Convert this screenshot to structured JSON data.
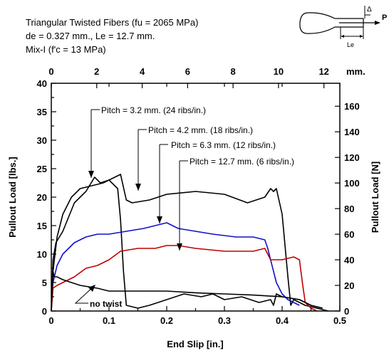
{
  "chart_data": {
    "type": "line",
    "info_lines": [
      "Triangular Twisted Fibers (fu = 2065 MPa)",
      "de = 0.327 mm., Le = 12.7 mm.",
      "Mix-I (f'c = 13 MPa)"
    ],
    "xlabel": "End Slip [in.]",
    "ylabel_left": "Pullout Load [lbs.]",
    "ylabel_right": "Pullout Load [N]",
    "top_axis_unit": "mm.",
    "xlim": [
      0,
      0.5
    ],
    "ylim": [
      0,
      40
    ],
    "x_ticks": [
      "0",
      "0.1",
      "0.2",
      "0.3",
      "0.4",
      "0.5"
    ],
    "y_ticks": [
      "0",
      "5",
      "10",
      "15",
      "20",
      "25",
      "30",
      "35",
      "40"
    ],
    "top_ticks": [
      "0",
      "2",
      "4",
      "6",
      "8",
      "10",
      "12"
    ],
    "right_ticks": [
      "0",
      "20",
      "40",
      "60",
      "80",
      "100",
      "120",
      "140",
      "160"
    ],
    "schematic": {
      "labels": [
        "P",
        "Le",
        "Δ"
      ]
    },
    "series": [
      {
        "name": "Pitch = 3.2 mm. (24 ribs/in.)",
        "color": "#000000",
        "x": [
          0,
          0.003,
          0.008,
          0.02,
          0.04,
          0.06,
          0.075,
          0.085,
          0.1,
          0.115,
          0.12,
          0.125,
          0.13,
          0.15,
          0.17,
          0.2,
          0.23,
          0.26,
          0.28,
          0.3,
          0.33,
          0.36,
          0.38,
          0.385,
          0.39,
          0.4,
          0.43,
          0.45,
          0.47
        ],
        "y": [
          0,
          9,
          12,
          14,
          19,
          21,
          23.5,
          22.5,
          23,
          21.5,
          16,
          7,
          1,
          0.5,
          1,
          2,
          3,
          2.5,
          3,
          2,
          2.5,
          1.5,
          2,
          1,
          3,
          2.5,
          2,
          1,
          0.5
        ]
      },
      {
        "name": "Pitch = 4.2 mm. (18 ribs/in.)",
        "color": "#000000",
        "x": [
          0,
          0.003,
          0.01,
          0.02,
          0.035,
          0.05,
          0.07,
          0.09,
          0.11,
          0.12,
          0.13,
          0.14,
          0.17,
          0.2,
          0.25,
          0.3,
          0.34,
          0.37,
          0.38,
          0.385,
          0.39,
          0.4,
          0.41,
          0.415,
          0.42,
          0.44,
          0.46,
          0.48
        ],
        "y": [
          0,
          7,
          13,
          17,
          20,
          21.5,
          22,
          22.5,
          23.5,
          24,
          19.5,
          19,
          19.5,
          20.5,
          21,
          20.5,
          19,
          20,
          21.5,
          21,
          21.5,
          17,
          6,
          1,
          2,
          1,
          0.5,
          0
        ]
      },
      {
        "name": "Pitch = 6.3 mm. (12 ribs/in.)",
        "color": "#1010c8",
        "x": [
          0,
          0.003,
          0.01,
          0.02,
          0.04,
          0.06,
          0.08,
          0.1,
          0.13,
          0.16,
          0.18,
          0.2,
          0.22,
          0.25,
          0.28,
          0.32,
          0.35,
          0.37,
          0.375,
          0.38,
          0.39,
          0.4,
          0.41,
          0.42,
          0.43
        ],
        "y": [
          0,
          5,
          8,
          10,
          12,
          13,
          13.5,
          13.5,
          14,
          14.5,
          15,
          15.5,
          14.5,
          14,
          13.5,
          13,
          13,
          12.5,
          11,
          9,
          5,
          3,
          2,
          1.5,
          1
        ]
      },
      {
        "name": "Pitch = 12.7 mm. (6 ribs/in.)",
        "color": "#c00000",
        "x": [
          0,
          0.003,
          0.01,
          0.02,
          0.04,
          0.06,
          0.08,
          0.1,
          0.12,
          0.15,
          0.18,
          0.2,
          0.22,
          0.25,
          0.3,
          0.35,
          0.37,
          0.38,
          0.4,
          0.42,
          0.43,
          0.435,
          0.44,
          0.45,
          0.46
        ],
        "y": [
          0,
          4,
          4.5,
          5,
          6,
          7.5,
          8,
          9,
          10.5,
          11,
          11,
          11.5,
          11.5,
          11,
          10.5,
          10.5,
          11,
          9,
          9,
          9.5,
          9,
          5,
          1.5,
          0.5,
          0
        ]
      },
      {
        "name": "no twist",
        "color": "#000000",
        "x": [
          0,
          0.003,
          0.005,
          0.01,
          0.02,
          0.05,
          0.08,
          0.1,
          0.15,
          0.2,
          0.25,
          0.3,
          0.35,
          0.4,
          0.43,
          0.45,
          0.47
        ],
        "y": [
          0,
          7,
          6,
          6,
          5.5,
          4.5,
          4,
          3.5,
          3.5,
          3.5,
          3.2,
          3,
          2.8,
          2.5,
          2,
          1,
          0.5
        ]
      }
    ],
    "annotations": [
      {
        "text": "Pitch =  3.2 mm. (24 ribs/in.)",
        "target_x": 0.078,
        "target_y": 23.5
      },
      {
        "text": "Pitch = 4.2 mm. (18 ribs/in.)",
        "target_x": 0.152,
        "target_y": 19.5
      },
      {
        "text": "Pitch = 6.3 mm. (12 ribs/in.)",
        "target_x": 0.19,
        "target_y": 15.3
      },
      {
        "text": "Pitch = 12.7 mm. (6 ribs/in.)",
        "target_x": 0.225,
        "target_y": 11.2
      },
      {
        "text": "no twist",
        "target_x": 0.08,
        "target_y": 3.8
      }
    ]
  }
}
